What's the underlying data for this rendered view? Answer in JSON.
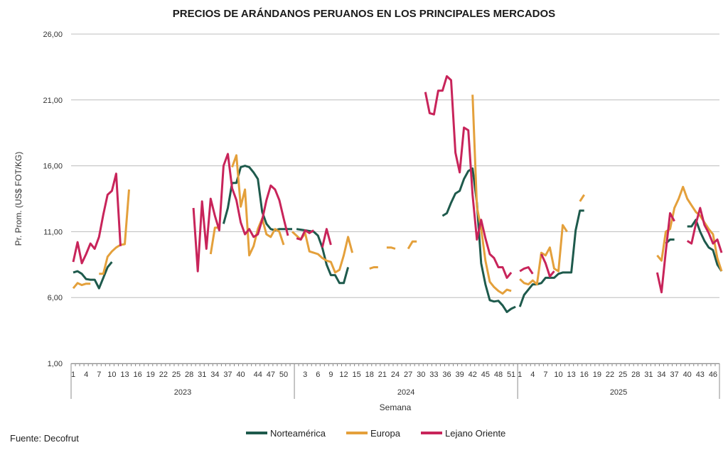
{
  "chart_data": {
    "type": "line",
    "title": "PRECIOS DE ARÁNDANOS PERUANOS EN LOS PRINCIPALES MERCADOS",
    "ylabel": "Pr. Prom. (US$ FOT/KG)",
    "xlabel": "Semana",
    "ylim": [
      1,
      26
    ],
    "yticks": [
      "1,00",
      "6,00",
      "11,00",
      "16,00",
      "21,00",
      "26,00"
    ],
    "ytick_values": [
      1,
      6,
      11,
      16,
      21,
      26
    ],
    "grid": true,
    "legend_position": "bottom",
    "years": [
      {
        "label": "2023",
        "start_index": 0,
        "weeks": 52
      },
      {
        "label": "2024",
        "start_index": 52,
        "weeks": 52
      },
      {
        "label": "2025",
        "start_index": 104,
        "weeks": 47
      }
    ],
    "x_tick_labels": [
      {
        "index": 0,
        "label": "1"
      },
      {
        "index": 3,
        "label": "4"
      },
      {
        "index": 6,
        "label": "7"
      },
      {
        "index": 9,
        "label": "10"
      },
      {
        "index": 12,
        "label": "13"
      },
      {
        "index": 15,
        "label": "16"
      },
      {
        "index": 18,
        "label": "19"
      },
      {
        "index": 21,
        "label": "22"
      },
      {
        "index": 24,
        "label": "25"
      },
      {
        "index": 27,
        "label": "28"
      },
      {
        "index": 30,
        "label": "31"
      },
      {
        "index": 33,
        "label": "34"
      },
      {
        "index": 36,
        "label": "37"
      },
      {
        "index": 39,
        "label": "40"
      },
      {
        "index": 43,
        "label": "44"
      },
      {
        "index": 46,
        "label": "47"
      },
      {
        "index": 49,
        "label": "50"
      },
      {
        "index": 54,
        "label": "3"
      },
      {
        "index": 57,
        "label": "6"
      },
      {
        "index": 60,
        "label": "9"
      },
      {
        "index": 63,
        "label": "12"
      },
      {
        "index": 66,
        "label": "15"
      },
      {
        "index": 69,
        "label": "18"
      },
      {
        "index": 72,
        "label": "21"
      },
      {
        "index": 75,
        "label": "24"
      },
      {
        "index": 78,
        "label": "27"
      },
      {
        "index": 81,
        "label": "30"
      },
      {
        "index": 84,
        "label": "33"
      },
      {
        "index": 87,
        "label": "36"
      },
      {
        "index": 90,
        "label": "39"
      },
      {
        "index": 93,
        "label": "42"
      },
      {
        "index": 96,
        "label": "45"
      },
      {
        "index": 99,
        "label": "48"
      },
      {
        "index": 102,
        "label": "51"
      },
      {
        "index": 104,
        "label": "1"
      },
      {
        "index": 107,
        "label": "4"
      },
      {
        "index": 110,
        "label": "7"
      },
      {
        "index": 113,
        "label": "10"
      },
      {
        "index": 116,
        "label": "13"
      },
      {
        "index": 119,
        "label": "16"
      },
      {
        "index": 122,
        "label": "19"
      },
      {
        "index": 125,
        "label": "22"
      },
      {
        "index": 128,
        "label": "25"
      },
      {
        "index": 131,
        "label": "28"
      },
      {
        "index": 134,
        "label": "31"
      },
      {
        "index": 137,
        "label": "34"
      },
      {
        "index": 140,
        "label": "37"
      },
      {
        "index": 143,
        "label": "40"
      },
      {
        "index": 146,
        "label": "43"
      },
      {
        "index": 149,
        "label": "46"
      }
    ],
    "series": [
      {
        "name": "Norteamérica",
        "color": "#1e5a4c",
        "segments": [
          {
            "start": 0,
            "values": [
              7.9,
              8.0,
              7.8,
              7.4,
              7.35,
              7.35,
              6.7,
              7.5,
              8.3,
              8.7
            ]
          },
          {
            "start": 35,
            "values": [
              11.6,
              12.8,
              14.7,
              14.7,
              15.9,
              16.0,
              15.9,
              15.5,
              15.0,
              12.5,
              11.6,
              11.2,
              11.1,
              11.2,
              11.2,
              11.2,
              11.2
            ]
          },
          {
            "start": 52,
            "values": [
              11.2,
              11.15,
              11.1,
              11.05,
              11.0,
              10.7,
              9.8,
              8.5,
              7.7,
              7.7,
              7.1,
              7.1,
              8.3
            ]
          },
          {
            "start": 86,
            "values": [
              12.2,
              12.4,
              13.2,
              13.9,
              14.1,
              15.0,
              15.6,
              15.8,
              13.2,
              8.6,
              7.0,
              5.8,
              5.7,
              5.75,
              5.4,
              4.9,
              5.15,
              5.3
            ]
          },
          {
            "start": 104,
            "values": [
              5.3,
              6.2,
              6.6,
              7.0,
              7.0,
              7.1,
              7.5,
              7.5,
              7.5,
              7.8,
              7.9,
              7.9,
              7.9,
              11.1,
              12.6,
              12.6
            ]
          },
          {
            "start": 138,
            "values": [
              10.1,
              10.4,
              10.4
            ]
          },
          {
            "start": 143,
            "values": [
              11.4,
              11.4,
              11.9,
              11.0,
              10.3,
              9.8,
              9.6,
              8.5,
              8.0
            ]
          }
        ]
      },
      {
        "name": "Europa",
        "color": "#e4a03b",
        "segments": [
          {
            "start": 0,
            "values": [
              6.7,
              7.1,
              6.95,
              7.05,
              7.05
            ]
          },
          {
            "start": 6,
            "values": [
              7.8,
              7.8,
              9.1,
              9.5,
              9.8,
              10.0,
              10.05,
              14.2
            ]
          },
          {
            "start": 32,
            "values": [
              9.3,
              11.3,
              11.3
            ]
          },
          {
            "start": 37,
            "values": [
              15.9,
              16.8,
              12.9,
              14.2,
              9.2,
              9.9,
              11.2,
              12.0,
              10.8,
              10.6,
              11.2,
              11.0,
              10.0
            ]
          },
          {
            "start": 51,
            "values": [
              11.0,
              10.7,
              10.4,
              10.9,
              9.5,
              9.4,
              9.3,
              9.0,
              8.8,
              8.7,
              7.9,
              8.1,
              9.2,
              10.6,
              9.4
            ]
          },
          {
            "start": 69,
            "values": [
              8.2,
              8.3,
              8.3
            ]
          },
          {
            "start": 73,
            "values": [
              9.8,
              9.8,
              9.7
            ]
          },
          {
            "start": 78,
            "values": [
              9.7,
              10.25,
              10.25
            ]
          },
          {
            "start": 93,
            "values": [
              21.4,
              12.9,
              11.2,
              8.8,
              7.2,
              6.8,
              6.5,
              6.3,
              6.6,
              6.5
            ]
          },
          {
            "start": 104,
            "values": [
              7.4,
              7.1,
              7.0,
              7.3,
              7.0,
              9.4,
              9.2,
              9.8,
              8.2,
              8.0,
              11.5,
              11.0
            ]
          },
          {
            "start": 118,
            "values": [
              13.3,
              13.8
            ]
          },
          {
            "start": 136,
            "values": [
              9.2,
              8.8,
              11.0,
              11.2,
              12.8,
              13.5,
              14.4,
              13.5,
              13.0,
              12.5,
              12.2,
              11.7,
              11.2,
              10.8,
              9.0,
              8.0
            ]
          }
        ]
      },
      {
        "name": "Lejano Oriente",
        "color": "#c8245a",
        "segments": [
          {
            "start": 0,
            "values": [
              8.7,
              10.2,
              8.6,
              9.3,
              10.1,
              9.7,
              10.6,
              12.3,
              13.8,
              14.1,
              15.4,
              9.9
            ]
          },
          {
            "start": 28,
            "values": [
              12.8,
              8.0,
              13.3,
              9.7,
              13.5,
              12.2,
              11.1,
              16.0,
              16.9,
              14.3,
              13.4,
              11.7,
              10.8,
              11.2,
              10.6,
              10.8,
              11.9,
              13.4,
              14.5,
              14.2,
              13.4,
              12.0,
              10.7
            ]
          },
          {
            "start": 52,
            "values": [
              10.5,
              10.4,
              11.1,
              10.9,
              11.1
            ]
          },
          {
            "start": 58,
            "values": [
              9.8,
              11.2,
              10.0
            ]
          },
          {
            "start": 82,
            "values": [
              21.6,
              20.0,
              19.9,
              21.7,
              21.7,
              22.8,
              22.5,
              17.0,
              15.5,
              18.9,
              18.7,
              13.8,
              10.4,
              11.9,
              10.5,
              9.3,
              9.0,
              8.3,
              8.3,
              7.5,
              7.9
            ]
          },
          {
            "start": 104,
            "values": [
              8.0,
              8.2,
              8.3,
              7.8
            ]
          },
          {
            "start": 109,
            "values": [
              9.3,
              8.6,
              7.6,
              8.0
            ]
          },
          {
            "start": 136,
            "values": [
              7.9,
              6.4,
              9.5,
              12.4,
              11.8
            ]
          },
          {
            "start": 143,
            "values": [
              10.3,
              10.1,
              11.6,
              12.8,
              11.5,
              10.9,
              10.1,
              10.4,
              9.4
            ]
          }
        ]
      }
    ]
  },
  "source": "Fuente: Decofrut"
}
